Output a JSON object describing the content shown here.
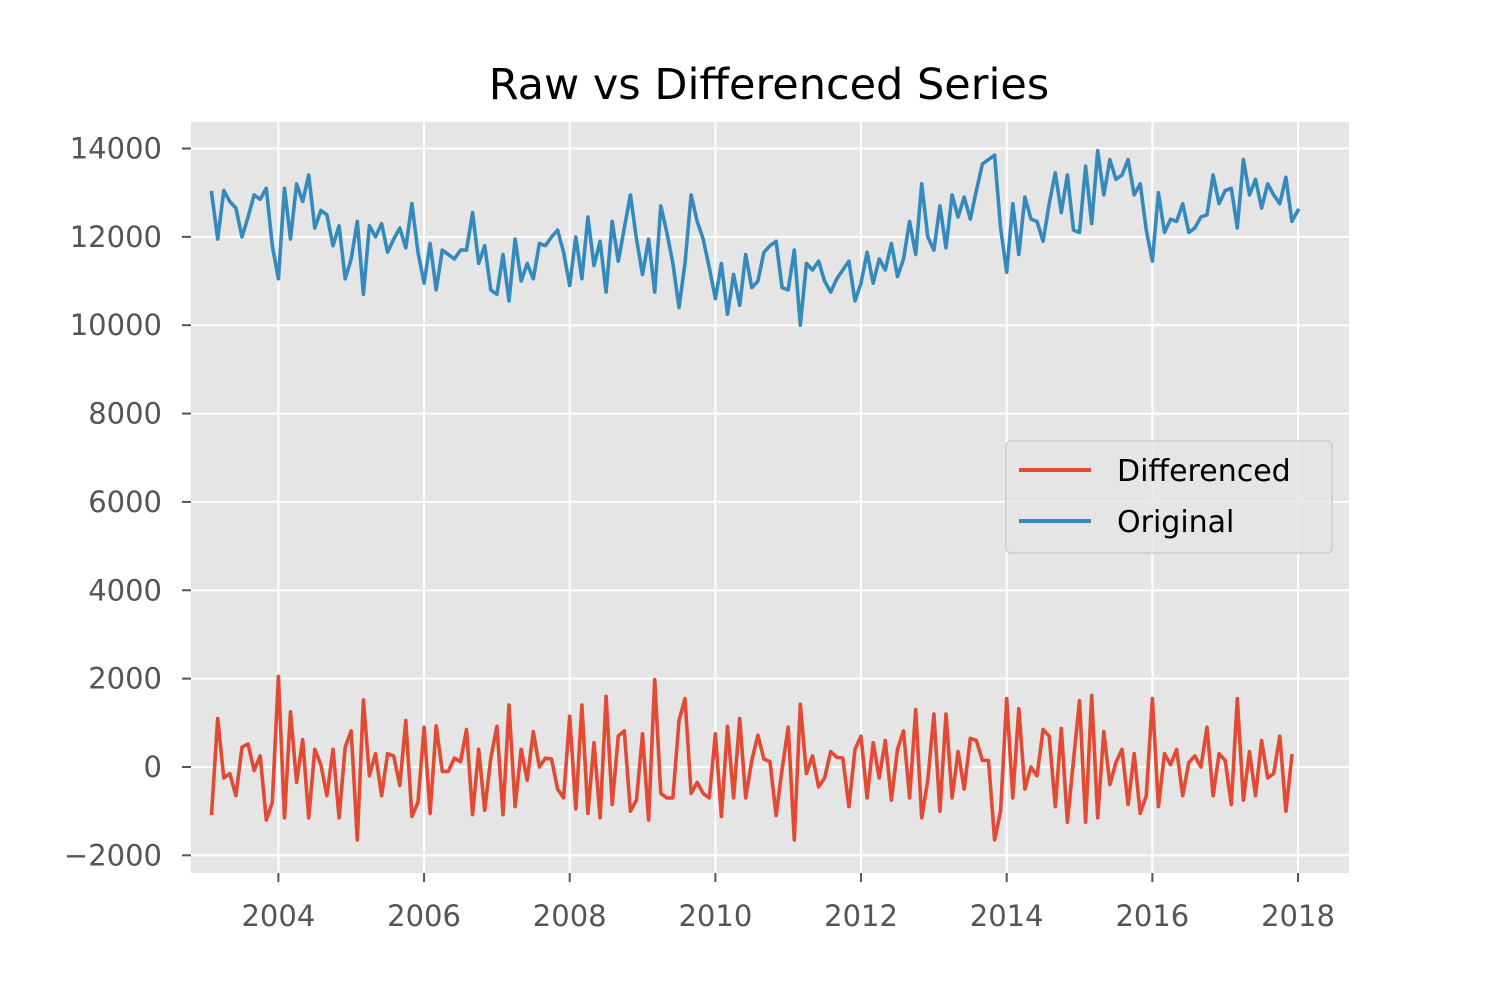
{
  "chart_data": {
    "type": "line",
    "title": "Raw vs Differenced Series",
    "xlabel": "",
    "ylabel": "",
    "x_start": "2003-02",
    "x_end": "2018-01",
    "x_frequency": "monthly",
    "xlim": [
      2002.8,
      2018.7
    ],
    "ylim": [
      -2400,
      14600
    ],
    "x_ticks": [
      {
        "value": 2004,
        "label": "2004"
      },
      {
        "value": 2006,
        "label": "2006"
      },
      {
        "value": 2008,
        "label": "2008"
      },
      {
        "value": 2010,
        "label": "2010"
      },
      {
        "value": 2012,
        "label": "2012"
      },
      {
        "value": 2014,
        "label": "2014"
      },
      {
        "value": 2016,
        "label": "2016"
      },
      {
        "value": 2018,
        "label": "2018"
      }
    ],
    "y_ticks": [
      {
        "value": -2000,
        "label": "−2000"
      },
      {
        "value": 0,
        "label": "0"
      },
      {
        "value": 2000,
        "label": "2000"
      },
      {
        "value": 4000,
        "label": "4000"
      },
      {
        "value": 6000,
        "label": "6000"
      },
      {
        "value": 8000,
        "label": "8000"
      },
      {
        "value": 10000,
        "label": "10000"
      },
      {
        "value": 12000,
        "label": "12000"
      },
      {
        "value": 14000,
        "label": "14000"
      }
    ],
    "grid": true,
    "legend_position": "center-right",
    "style": {
      "background": "#e5e5e5",
      "grid_color": "#ffffff",
      "tick_color": "#555555"
    },
    "series": [
      {
        "name": "Differenced",
        "color": "#e24a33",
        "values": [
          -1050,
          1100,
          -250,
          -150,
          -650,
          450,
          520,
          -80,
          250,
          -1200,
          -800,
          2050,
          -1150,
          1250,
          -350,
          620,
          -1150,
          400,
          50,
          -650,
          400,
          -1150,
          450,
          820,
          -1650,
          1520,
          -200,
          300,
          -650,
          300,
          250,
          -420,
          1050,
          -1120,
          -800,
          900,
          -1050,
          930,
          -100,
          -100,
          200,
          120,
          850,
          -1080,
          400,
          -980,
          200,
          920,
          -1080,
          1400,
          -900,
          400,
          -300,
          800,
          0,
          200,
          180,
          -500,
          -700,
          1150,
          -950,
          1400,
          -1050,
          550,
          -1150,
          1600,
          -850,
          700,
          820,
          -1000,
          -750,
          750,
          -1200,
          1980,
          -600,
          -700,
          -700,
          1050,
          1550,
          -600,
          -350,
          -600,
          -700,
          750,
          -1120,
          920,
          -700,
          1100,
          -700,
          150,
          720,
          180,
          120,
          -1100,
          -50,
          900,
          -1650,
          1420,
          -150,
          250,
          -450,
          -250,
          350,
          220,
          200,
          -900,
          400,
          700,
          -700,
          550,
          -250,
          600,
          -750,
          400,
          820,
          -700,
          1300,
          -1150,
          -300,
          1200,
          -1000,
          1200,
          -700,
          350,
          -500,
          650,
          600,
          150,
          150,
          -1650,
          -1000,
          1550,
          -700,
          1320,
          -500,
          0,
          -200,
          850,
          700,
          -900,
          870,
          -1250,
          150,
          1500,
          -1250,
          1620,
          -1150,
          800,
          -400,
          100,
          400,
          -850,
          300,
          -1050,
          -650,
          1550,
          -900,
          300,
          50,
          400,
          -650,
          100,
          250,
          0,
          900,
          -650,
          300,
          150,
          -850,
          1550,
          -750,
          350,
          -650,
          600,
          -250,
          -150,
          700,
          -1000,
          250
        ]
      },
      {
        "name": "Original",
        "color": "#348abd",
        "values": [
          13000,
          11950,
          13050,
          12800,
          12650,
          12000,
          12450,
          12950,
          12850,
          13100,
          11800,
          11050,
          13100,
          11950,
          13200,
          12800,
          13400,
          12200,
          12600,
          12500,
          11800,
          12250,
          11050,
          11500,
          12350,
          10700,
          12250,
          12000,
          12300,
          11650,
          11950,
          12200,
          11750,
          12750,
          11650,
          10950,
          11850,
          10800,
          11700,
          11600,
          11500,
          11700,
          11700,
          12550,
          11400,
          11800,
          10800,
          10700,
          11600,
          10550,
          11950,
          11000,
          11400,
          11050,
          11850,
          11800,
          12000,
          12150,
          11650,
          10900,
          12000,
          11050,
          12450,
          11350,
          11900,
          10750,
          12350,
          11450,
          12200,
          12950,
          11950,
          11150,
          11950,
          10750,
          12700,
          12100,
          11400,
          10400,
          11400,
          12950,
          12350,
          11950,
          11300,
          10600,
          11400,
          10250,
          11150,
          10450,
          11600,
          10850,
          11000,
          11650,
          11800,
          11900,
          10850,
          10800,
          11700,
          10000,
          11400,
          11250,
          11450,
          11000,
          10750,
          11050,
          11250,
          11450,
          10550,
          10950,
          11650,
          10950,
          11500,
          11250,
          11850,
          11100,
          11500,
          12350,
          11600,
          13200,
          12000,
          11700,
          12700,
          11750,
          12950,
          12450,
          12900,
          12400,
          13050,
          13650,
          13750,
          13850,
          12200,
          11200,
          12750,
          11600,
          12900,
          12400,
          12350,
          11900,
          12750,
          13450,
          12550,
          13400,
          12150,
          12100,
          13600,
          12300,
          13950,
          12950,
          13750,
          13300,
          13400,
          13750,
          12950,
          13200,
          12150,
          11450,
          13000,
          12100,
          12400,
          12350,
          12750,
          12100,
          12200,
          12450,
          12500,
          13400,
          12750,
          13050,
          13100,
          12200,
          13750,
          12950,
          13300,
          12650,
          13200,
          12950,
          12750,
          13350,
          12350,
          12600
        ]
      }
    ]
  }
}
